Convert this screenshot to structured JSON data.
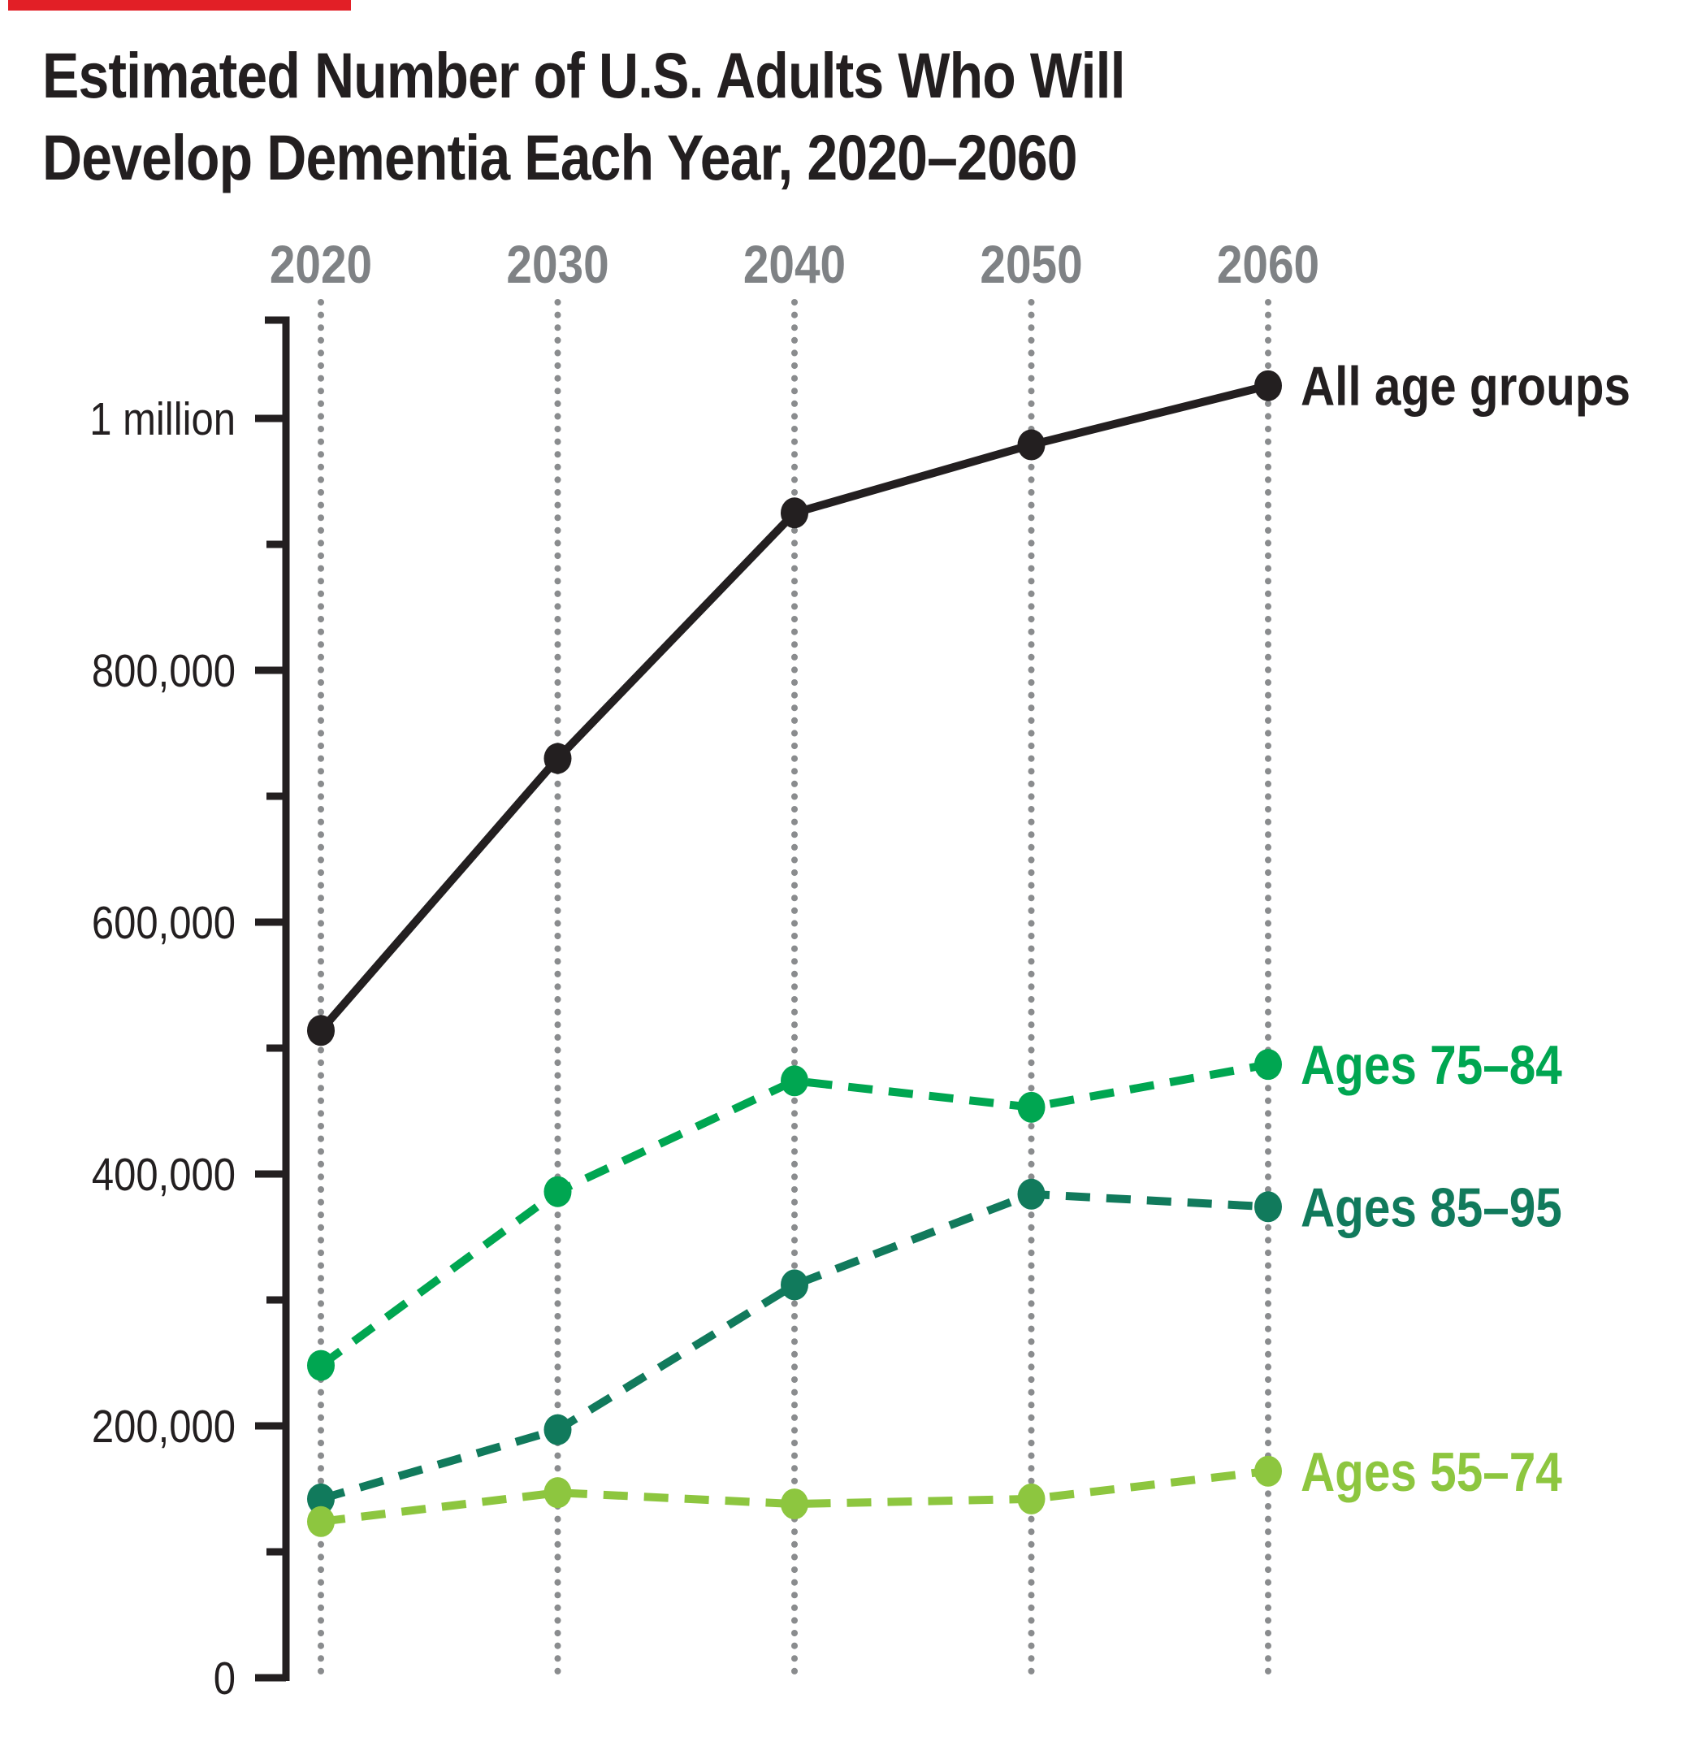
{
  "accent_color": "#e21f26",
  "title": {
    "line1": "Estimated Number of U.S. Adults Who Will",
    "line2": "Develop Dementia Each Year, 2020–2060"
  },
  "chart_data": {
    "type": "line",
    "x": [
      "2020",
      "2030",
      "2040",
      "2050",
      "2060"
    ],
    "y_axis": {
      "ticks": [
        {
          "value": 0,
          "label": "0"
        },
        {
          "value": 200000,
          "label": "200,000"
        },
        {
          "value": 400000,
          "label": "400,000"
        },
        {
          "value": 600000,
          "label": "600,000"
        },
        {
          "value": 800000,
          "label": "800,000"
        },
        {
          "value": 1000000,
          "label": "1 million"
        }
      ],
      "minor_ticks": [
        100000,
        300000,
        500000,
        700000,
        900000
      ],
      "ylim": [
        0,
        1080000
      ]
    },
    "grid": {
      "style": "dotted-vertical",
      "color": "#8a8c8e"
    },
    "axis_color": "#231f20",
    "xtick_label_color": "#7f8285",
    "legend_position": "right-of-last-point",
    "series": [
      {
        "name": "All age groups",
        "color": "#231f20",
        "line_style": "solid",
        "values": [
          514000,
          730000,
          925000,
          979000,
          1026000
        ]
      },
      {
        "name": "Ages 75–84",
        "color": "#00a651",
        "line_style": "dashed",
        "values": [
          248000,
          386000,
          474000,
          453000,
          487000
        ]
      },
      {
        "name": "Ages 85–95",
        "color": "#117a5c",
        "line_style": "dashed",
        "values": [
          142000,
          197000,
          312000,
          384000,
          374000
        ]
      },
      {
        "name": "Ages 55–74",
        "color": "#8dc63f",
        "line_style": "dashed",
        "values": [
          124000,
          147000,
          138000,
          142000,
          164000
        ]
      }
    ]
  }
}
